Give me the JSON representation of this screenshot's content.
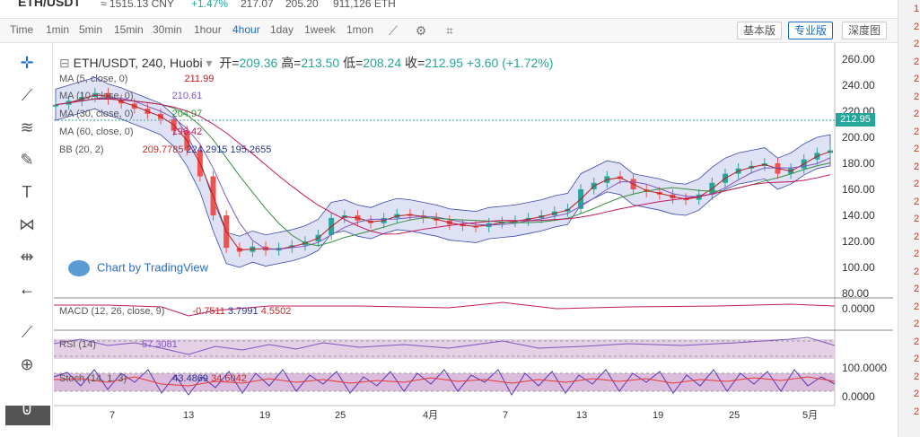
{
  "topbar": {
    "pair": "ETH/USDT",
    "cny": "≈ 1515.13 CNY",
    "change": "+1.47%",
    "high": "217.07",
    "low": "205.20",
    "volume": "911,126 ETH"
  },
  "toolbar": {
    "timeframes": [
      "Time",
      "1min",
      "5min",
      "15min",
      "30min",
      "1hour",
      "4hour",
      "1day",
      "1week",
      "1mon"
    ],
    "active_timeframe": "4hour",
    "view_buttons": [
      "基本版",
      "专业版",
      "深度图"
    ],
    "active_view": "专业版",
    "icons": [
      "indicator-icon",
      "settings-icon",
      "screenshot-icon"
    ]
  },
  "left_tools": [
    "crosshair-icon",
    "trend-line-icon",
    "fib-icon",
    "brush-icon",
    "text-icon",
    "pattern-icon",
    "measure-icon",
    "back-arrow-icon",
    "ruler-icon",
    "zoom-in-icon",
    "magnet-icon"
  ],
  "header": {
    "symbol": "ETH/USDT, 240, Huobi",
    "open_label": "开=",
    "open": "209.36",
    "high_label": "高=",
    "high": "213.50",
    "low_label": "低=",
    "low": "208.24",
    "close_label": "收=",
    "close": "212.95",
    "change": "+3.60 (+1.72%)"
  },
  "legends": [
    {
      "name": "MA (5, close, 0)",
      "value": "211.99",
      "color": "#b71c1c"
    },
    {
      "name": "MA (10, close, 0)",
      "value": "210.61",
      "color": "#7e57c2"
    },
    {
      "name": "MA (30, close, 0)",
      "value": "204.97",
      "color": "#388e3c"
    },
    {
      "name": "MA (60, close, 0)",
      "value": "196.42",
      "color": "#c2185b"
    },
    {
      "name": "BB (20, 2)",
      "value": "209.7785",
      "value2": "224.2915",
      "value3": "195.2655",
      "color": "#c62828"
    }
  ],
  "macd": {
    "name": "MACD (12, 26, close, 9)",
    "v1": "-0.7511",
    "v2": "3.7991",
    "v3": "4.5502"
  },
  "rsi": {
    "name": "RSI (14)",
    "v1": "57.3081"
  },
  "stoch": {
    "name": "Stoch (14, 1, 3)",
    "v1": "43.4869",
    "v2": "34.6042"
  },
  "watermark": "Chart by TradingView",
  "price_badge": "212.95",
  "y_ticks": [
    "260.00",
    "240.00",
    "220.00",
    "200.00",
    "180.00",
    "160.00",
    "140.00",
    "120.00",
    "100.00",
    "80.00"
  ],
  "macd_tick": "0.0000",
  "stoch_ticks": [
    "100.0000",
    "0.0000"
  ],
  "x_ticks": [
    "7",
    "13",
    "19",
    "25",
    "4月",
    "7",
    "13",
    "19",
    "25",
    "5月"
  ],
  "chart_data": {
    "type": "line",
    "ylim": [
      80,
      265
    ],
    "x": [
      0,
      1,
      2,
      3,
      4,
      5,
      6,
      7,
      8,
      9,
      10,
      11,
      12,
      13,
      14,
      15,
      16,
      17,
      18,
      19,
      20,
      21,
      22,
      23,
      24,
      25,
      26,
      27,
      28,
      29,
      30,
      31,
      32,
      33,
      34,
      35,
      36,
      37,
      38,
      39,
      40,
      41,
      42,
      43,
      44,
      45,
      46,
      47,
      48,
      49,
      50,
      51,
      52,
      53,
      54,
      55,
      56,
      57,
      58,
      59
    ],
    "series": [
      {
        "values": [
          225,
          228,
          231,
          234,
          229,
          226,
          222,
          218,
          214,
          205,
          190,
          170,
          140,
          115,
          112,
          116,
          113,
          115,
          117,
          120,
          125,
          138,
          140,
          136,
          134,
          138,
          141,
          140,
          138,
          136,
          133,
          132,
          131,
          134,
          135,
          136,
          138,
          140,
          143,
          145,
          160,
          165,
          170,
          168,
          160,
          158,
          156,
          153,
          152,
          156,
          165,
          172,
          176,
          178,
          180,
          172,
          176,
          183,
          188,
          190
        ]
      }
    ]
  },
  "right_bar": [
    "1",
    "2",
    "2",
    "2",
    "2",
    "2",
    "2",
    "2",
    "2",
    "2",
    "2",
    "2",
    "2",
    "2",
    "2",
    "2",
    "2",
    "2",
    "2",
    "2",
    "2",
    "2",
    "2",
    "2"
  ]
}
